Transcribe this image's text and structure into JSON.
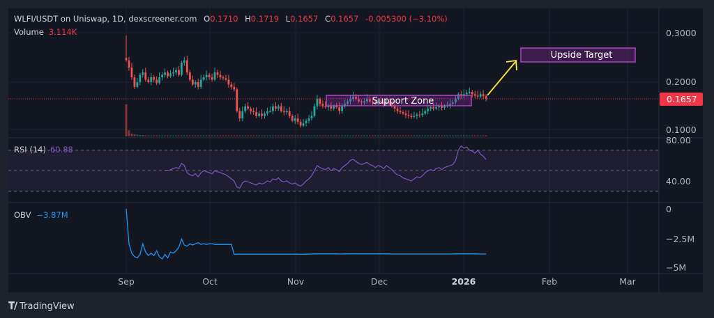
{
  "legend": {
    "symbol": "WLFI/USDT on Uniswap, 1D, dexscreener.com",
    "open_label": "O",
    "open": "0.1710",
    "high_label": "H",
    "high": "0.1719",
    "low_label": "L",
    "low": "0.1657",
    "close_label": "C",
    "close": "0.1657",
    "change": "-0.005300 (−3.10%)",
    "volume_label": "Volume",
    "volume": "3.114K",
    "rsi_label": "RSI (14)",
    "rsi_value": "60.88",
    "obv_label": "OBV",
    "obv_value": "−3.87M"
  },
  "price_axis": {
    "ticks": [
      "0.3000",
      "0.2000",
      "0.1000"
    ],
    "last_price": "0.1657"
  },
  "rsi_axis": {
    "ticks": [
      "80.00",
      "40.00"
    ]
  },
  "obv_axis": {
    "ticks": [
      "0",
      "−2.5M",
      "−5M"
    ]
  },
  "time_axis": [
    "Sep",
    "Oct",
    "Nov",
    "Dec",
    "2026",
    "Feb",
    "Mar"
  ],
  "annotations": {
    "support": "Support Zone",
    "target": "Upside Target"
  },
  "branding": "TradingView",
  "colors": {
    "up": "#26a69a",
    "down": "#ef5350",
    "rsi": "#7e57c2",
    "obv": "#2196f3",
    "annotation": "#9c27b0",
    "arrow": "#ffeb3b",
    "last_price": "#f23645"
  },
  "chart_data": [
    {
      "type": "candlestick",
      "interval": "1D",
      "x_start": "2025-09-01",
      "ylim": [
        0.08,
        0.32
      ],
      "first_open": 0.25,
      "close": [
        0.245,
        0.23,
        0.21,
        0.19,
        0.2,
        0.215,
        0.22,
        0.205,
        0.2,
        0.21,
        0.205,
        0.198,
        0.21,
        0.215,
        0.22,
        0.212,
        0.218,
        0.22,
        0.225,
        0.215,
        0.24,
        0.245,
        0.22,
        0.205,
        0.195,
        0.2,
        0.19,
        0.205,
        0.21,
        0.215,
        0.21,
        0.205,
        0.22,
        0.215,
        0.21,
        0.208,
        0.205,
        0.195,
        0.19,
        0.185,
        0.14,
        0.125,
        0.14,
        0.15,
        0.145,
        0.14,
        0.138,
        0.13,
        0.135,
        0.13,
        0.135,
        0.14,
        0.14,
        0.15,
        0.145,
        0.15,
        0.14,
        0.138,
        0.14,
        0.13,
        0.12,
        0.125,
        0.118,
        0.11,
        0.115,
        0.12,
        0.125,
        0.13,
        0.15,
        0.165,
        0.155,
        0.15,
        0.148,
        0.15,
        0.145,
        0.15,
        0.148,
        0.14,
        0.15,
        0.155,
        0.16,
        0.165,
        0.17,
        0.165,
        0.16,
        0.158,
        0.16,
        0.165,
        0.16,
        0.158,
        0.155,
        0.16,
        0.158,
        0.155,
        0.16,
        0.155,
        0.15,
        0.145,
        0.14,
        0.138,
        0.135,
        0.132,
        0.13,
        0.128,
        0.13,
        0.133,
        0.132,
        0.135,
        0.14,
        0.145,
        0.148,
        0.145,
        0.148,
        0.15,
        0.147,
        0.15,
        0.152,
        0.155,
        0.158,
        0.165,
        0.175,
        0.172,
        0.175,
        0.178,
        0.18,
        0.175,
        0.172,
        0.17,
        0.175,
        0.171,
        0.1657
      ],
      "volume_k": [
        95,
        18,
        8,
        6,
        5,
        4,
        4,
        3,
        3,
        3
      ]
    },
    {
      "type": "line",
      "name": "RSI (14)",
      "ylim": [
        20,
        90
      ],
      "bands": [
        70,
        50,
        30
      ],
      "values": [
        null,
        null,
        null,
        null,
        null,
        null,
        null,
        null,
        null,
        null,
        null,
        null,
        null,
        null,
        50,
        50,
        51,
        52,
        53,
        52,
        57,
        55,
        48,
        46,
        45,
        47,
        44,
        48,
        50,
        49,
        48,
        47,
        50,
        49,
        48,
        47,
        46,
        44,
        42,
        40,
        34,
        33,
        38,
        40,
        39,
        38,
        37,
        36,
        38,
        37,
        38,
        40,
        39,
        42,
        41,
        43,
        40,
        39,
        40,
        38,
        37,
        38,
        36,
        35,
        37,
        40,
        42,
        45,
        50,
        55,
        53,
        52,
        51,
        53,
        50,
        52,
        51,
        49,
        53,
        55,
        57,
        60,
        61,
        59,
        57,
        56,
        57,
        58,
        56,
        55,
        53,
        55,
        54,
        52,
        55,
        53,
        51,
        48,
        46,
        45,
        43,
        42,
        41,
        40,
        42,
        44,
        43,
        45,
        48,
        50,
        51,
        50,
        52,
        53,
        51,
        53,
        54,
        55,
        56,
        60,
        70,
        74,
        72,
        73,
        70,
        69,
        67,
        70,
        66,
        64,
        60.88
      ]
    },
    {
      "type": "line",
      "name": "OBV",
      "unit": "M",
      "ylim": [
        -5,
        0.3
      ],
      "values": [
        0,
        -3.0,
        -3.8,
        -4.1,
        -4.2,
        -3.9,
        -3.0,
        -3.7,
        -4.0,
        -3.8,
        -4.0,
        -3.6,
        -4.1,
        -4.3,
        -3.9,
        -4.2,
        -3.7,
        -3.8,
        -3.6,
        -3.3,
        -2.6,
        -3.1,
        -3.2,
        -3.0,
        -3.1,
        -3.0,
        -2.9,
        -3.05,
        -3.0,
        -3.05,
        -3.0,
        -3.0,
        -3.05,
        -3.05,
        -3.05,
        -3.05,
        -3.05,
        -3.05,
        -3.05,
        -3.9,
        -3.88,
        -3.88,
        -3.88,
        -3.88,
        -3.88,
        -3.88,
        -3.88,
        -3.88,
        -3.88,
        -3.88,
        -3.88,
        -3.88,
        -3.88,
        -3.88,
        -3.88,
        -3.88,
        -3.88,
        -3.88,
        -3.88,
        -3.88,
        -3.88,
        -3.88,
        -3.88,
        -3.89,
        -3.89,
        -3.88,
        -3.88,
        -3.87,
        -3.86,
        -3.86,
        -3.86,
        -3.86,
        -3.86,
        -3.86,
        -3.86,
        -3.86,
        -3.86,
        -3.87,
        -3.87,
        -3.86,
        -3.86,
        -3.86,
        -3.85,
        -3.86,
        -3.86,
        -3.86,
        -3.86,
        -3.86,
        -3.86,
        -3.86,
        -3.86,
        -3.86,
        -3.86,
        -3.86,
        -3.86,
        -3.86,
        -3.87,
        -3.87,
        -3.87,
        -3.87,
        -3.87,
        -3.87,
        -3.87,
        -3.87,
        -3.87,
        -3.87,
        -3.87,
        -3.87,
        -3.87,
        -3.87,
        -3.87,
        -3.87,
        -3.87,
        -3.87,
        -3.87,
        -3.87,
        -3.87,
        -3.87,
        -3.87,
        -3.86,
        -3.86,
        -3.86,
        -3.86,
        -3.86,
        -3.86,
        -3.86,
        -3.86,
        -3.87,
        -3.87,
        -3.87,
        -3.87
      ]
    }
  ]
}
